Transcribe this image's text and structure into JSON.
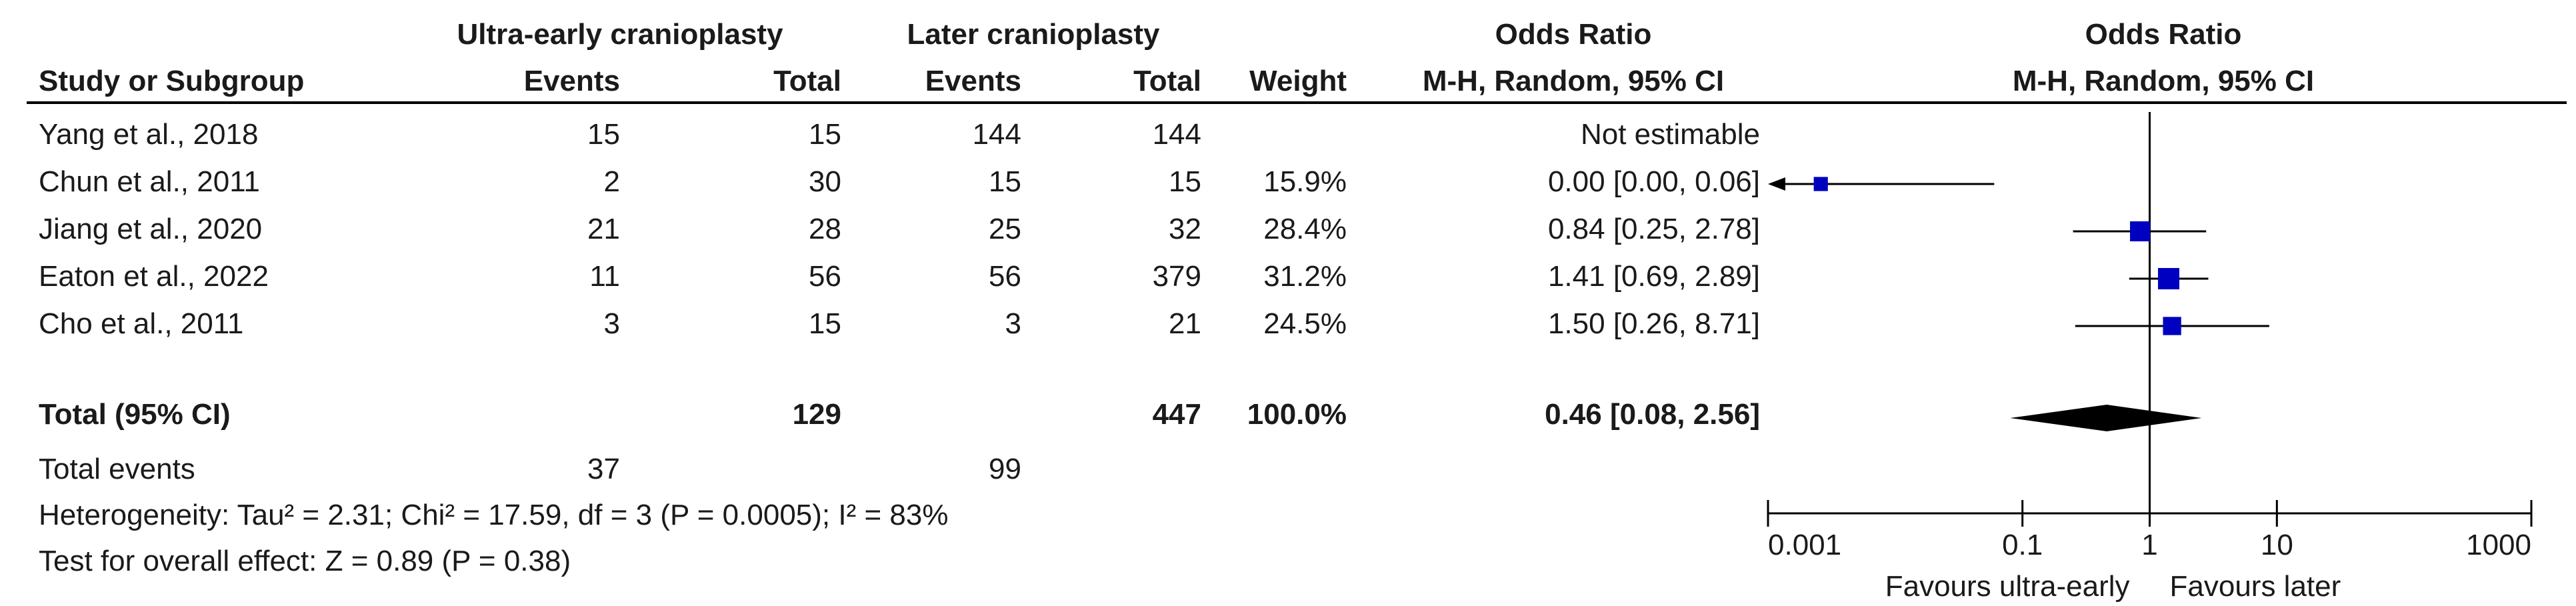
{
  "table": {
    "group_headers": {
      "experimental": "Ultra-early cranioplasty",
      "control": "Later cranioplasty",
      "or_col": "Odds Ratio",
      "plot_col": "Odds Ratio"
    },
    "column_headers": {
      "study": "Study or Subgroup",
      "e_events": "Events",
      "e_total": "Total",
      "c_events": "Events",
      "c_total": "Total",
      "weight": "Weight",
      "or_method": "M-H, Random, 95% CI",
      "plot_method": "M-H, Random, 95% CI"
    },
    "rows": [
      {
        "study": "Yang et al., 2018",
        "e_events": "15",
        "e_total": "15",
        "c_events": "144",
        "c_total": "144",
        "weight": "",
        "or_text": "Not estimable"
      },
      {
        "study": "Chun et al., 2011",
        "e_events": "2",
        "e_total": "30",
        "c_events": "15",
        "c_total": "15",
        "weight": "15.9%",
        "or_text": "0.00 [0.00, 0.06]"
      },
      {
        "study": "Jiang et al., 2020",
        "e_events": "21",
        "e_total": "28",
        "c_events": "25",
        "c_total": "32",
        "weight": "28.4%",
        "or_text": "0.84 [0.25, 2.78]"
      },
      {
        "study": "Eaton et al., 2022",
        "e_events": "11",
        "e_total": "56",
        "c_events": "56",
        "c_total": "379",
        "weight": "31.2%",
        "or_text": "1.41 [0.69, 2.89]"
      },
      {
        "study": "Cho et al., 2011",
        "e_events": "3",
        "e_total": "15",
        "c_events": "3",
        "c_total": "21",
        "weight": "24.5%",
        "or_text": "1.50 [0.26, 8.71]"
      }
    ],
    "total_row": {
      "label": "Total (95% CI)",
      "e_total": "129",
      "c_total": "447",
      "weight": "100.0%",
      "or_text": "0.46 [0.08, 2.56]"
    },
    "events_row": {
      "label": "Total events",
      "e_events": "37",
      "c_events": "99"
    },
    "heterogeneity": "Heterogeneity: Tau² = 2.31; Chi² = 17.59, df = 3 (P = 0.0005); I² = 83%",
    "overall_effect": "Test for overall effect: Z = 0.89 (P = 0.38)"
  },
  "chart_data": {
    "type": "forest",
    "x_scale": "log",
    "xlim": [
      0.001,
      1000
    ],
    "x_ticks": [
      "0.001",
      "0.1",
      "1",
      "10",
      "1000"
    ],
    "x_tick_values": [
      0.001,
      0.1,
      1,
      10,
      1000
    ],
    "favours_left": "Favours ultra-early",
    "favours_right": "Favours later",
    "marker_color": "#0000c0",
    "studies": [
      {
        "study": "Yang et al., 2018",
        "or": null,
        "lo": null,
        "hi": null,
        "weight": null
      },
      {
        "study": "Chun et al., 2011",
        "or": 0.0026,
        "lo": 0.0001,
        "hi": 0.06,
        "weight": 15.9
      },
      {
        "study": "Jiang et al., 2020",
        "or": 0.84,
        "lo": 0.25,
        "hi": 2.78,
        "weight": 28.4
      },
      {
        "study": "Eaton et al., 2022",
        "or": 1.41,
        "lo": 0.69,
        "hi": 2.89,
        "weight": 31.2
      },
      {
        "study": "Cho et al., 2011",
        "or": 1.5,
        "lo": 0.26,
        "hi": 8.71,
        "weight": 24.5
      }
    ],
    "pooled": {
      "or": 0.46,
      "lo": 0.08,
      "hi": 2.56
    }
  }
}
